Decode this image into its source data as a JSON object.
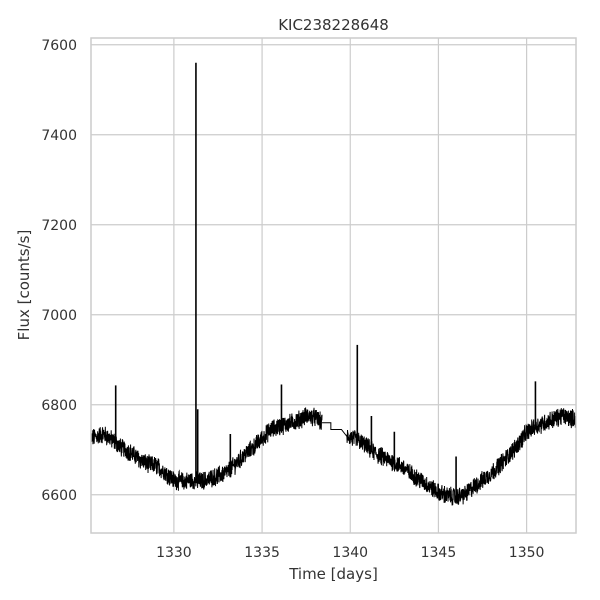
{
  "chart_data": {
    "type": "line",
    "title": "KIC238228648",
    "xlabel": "Time [days]",
    "ylabel": "Flux [counts/s]",
    "xlim": [
      1325.3,
      1352.8
    ],
    "ylim": [
      6515,
      7615
    ],
    "xticks": [
      1330,
      1335,
      1340,
      1345,
      1350
    ],
    "yticks": [
      6600,
      6800,
      7000,
      7200,
      7400,
      7600
    ],
    "grid": true,
    "colors": {
      "line": "#000000",
      "grid": "#cccccc",
      "text": "#333333"
    },
    "series": [
      {
        "name": "",
        "trend": [
          [
            1325.3,
            6725
          ],
          [
            1326.0,
            6735
          ],
          [
            1326.5,
            6722
          ],
          [
            1327.0,
            6705
          ],
          [
            1327.5,
            6695
          ],
          [
            1328.0,
            6680
          ],
          [
            1328.5,
            6668
          ],
          [
            1329.0,
            6665
          ],
          [
            1329.5,
            6650
          ],
          [
            1330.0,
            6632
          ],
          [
            1330.5,
            6630
          ],
          [
            1331.0,
            6632
          ],
          [
            1331.5,
            6630
          ],
          [
            1332.0,
            6635
          ],
          [
            1332.5,
            6642
          ],
          [
            1333.0,
            6650
          ],
          [
            1333.5,
            6668
          ],
          [
            1334.0,
            6688
          ],
          [
            1334.5,
            6705
          ],
          [
            1335.0,
            6725
          ],
          [
            1335.5,
            6745
          ],
          [
            1336.0,
            6752
          ],
          [
            1336.5,
            6758
          ],
          [
            1337.0,
            6765
          ],
          [
            1337.5,
            6775
          ],
          [
            1338.0,
            6772
          ],
          [
            1338.4,
            6760
          ]
        ],
        "trend2": [
          [
            1339.8,
            6730
          ],
          [
            1340.5,
            6720
          ],
          [
            1341.0,
            6705
          ],
          [
            1341.5,
            6690
          ],
          [
            1342.0,
            6680
          ],
          [
            1342.5,
            6672
          ],
          [
            1343.0,
            6660
          ],
          [
            1343.5,
            6645
          ],
          [
            1344.0,
            6632
          ],
          [
            1344.5,
            6618
          ],
          [
            1345.0,
            6605
          ],
          [
            1345.5,
            6598
          ],
          [
            1346.0,
            6595
          ],
          [
            1346.5,
            6600
          ],
          [
            1347.0,
            6618
          ],
          [
            1347.5,
            6632
          ],
          [
            1348.0,
            6648
          ],
          [
            1348.5,
            6668
          ],
          [
            1349.0,
            6688
          ],
          [
            1349.5,
            6712
          ],
          [
            1350.0,
            6738
          ],
          [
            1350.5,
            6752
          ],
          [
            1351.0,
            6760
          ],
          [
            1351.5,
            6768
          ],
          [
            1352.0,
            6775
          ],
          [
            1352.8,
            6768
          ]
        ],
        "gap": [
          [
            1338.4,
            6760
          ],
          [
            1338.9,
            6760
          ],
          [
            1338.9,
            6745
          ],
          [
            1339.5,
            6745
          ],
          [
            1339.8,
            6730
          ]
        ],
        "scatter_amplitude": 18,
        "spikes": [
          [
            1326.7,
            6843
          ],
          [
            1331.25,
            7560
          ],
          [
            1331.35,
            6790
          ],
          [
            1333.2,
            6735
          ],
          [
            1336.1,
            6845
          ],
          [
            1340.4,
            6933
          ],
          [
            1341.2,
            6775
          ],
          [
            1342.5,
            6740
          ],
          [
            1346.0,
            6685
          ],
          [
            1350.5,
            6852
          ]
        ]
      }
    ]
  }
}
